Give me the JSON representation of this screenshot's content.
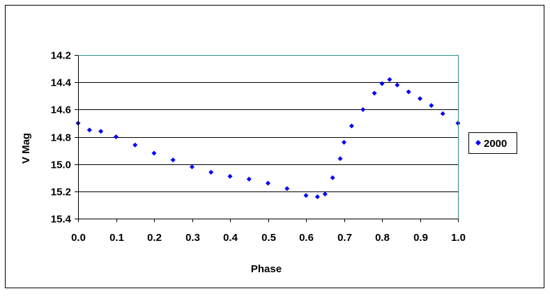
{
  "chart_data": {
    "type": "scatter",
    "xlabel": "Phase",
    "ylabel": "V Mag",
    "xlim": [
      0.0,
      1.0
    ],
    "ylim": [
      14.2,
      15.4
    ],
    "y_inverted": true,
    "grid": "horizontal",
    "legend_position": "right",
    "x_ticks": [
      "0.0",
      "0.1",
      "0.2",
      "0.3",
      "0.4",
      "0.5",
      "0.6",
      "0.7",
      "0.8",
      "0.9",
      "1.0"
    ],
    "y_ticks": [
      "14.2",
      "14.4",
      "14.6",
      "14.8",
      "15.0",
      "15.2",
      "15.4"
    ],
    "series": [
      {
        "name": "2000",
        "color": "#0000ff",
        "marker": "diamond",
        "x": [
          0.0,
          0.03,
          0.06,
          0.1,
          0.15,
          0.2,
          0.25,
          0.3,
          0.35,
          0.4,
          0.45,
          0.5,
          0.55,
          0.6,
          0.63,
          0.65,
          0.67,
          0.69,
          0.7,
          0.72,
          0.75,
          0.78,
          0.8,
          0.82,
          0.84,
          0.87,
          0.9,
          0.93,
          0.96,
          1.0
        ],
        "y": [
          14.7,
          14.75,
          14.76,
          14.8,
          14.86,
          14.92,
          14.97,
          15.02,
          15.06,
          15.09,
          15.11,
          15.14,
          15.18,
          15.23,
          15.24,
          15.22,
          15.1,
          14.96,
          14.84,
          14.72,
          14.6,
          14.48,
          14.41,
          14.38,
          14.42,
          14.47,
          14.52,
          14.57,
          14.63,
          14.7
        ]
      }
    ]
  }
}
